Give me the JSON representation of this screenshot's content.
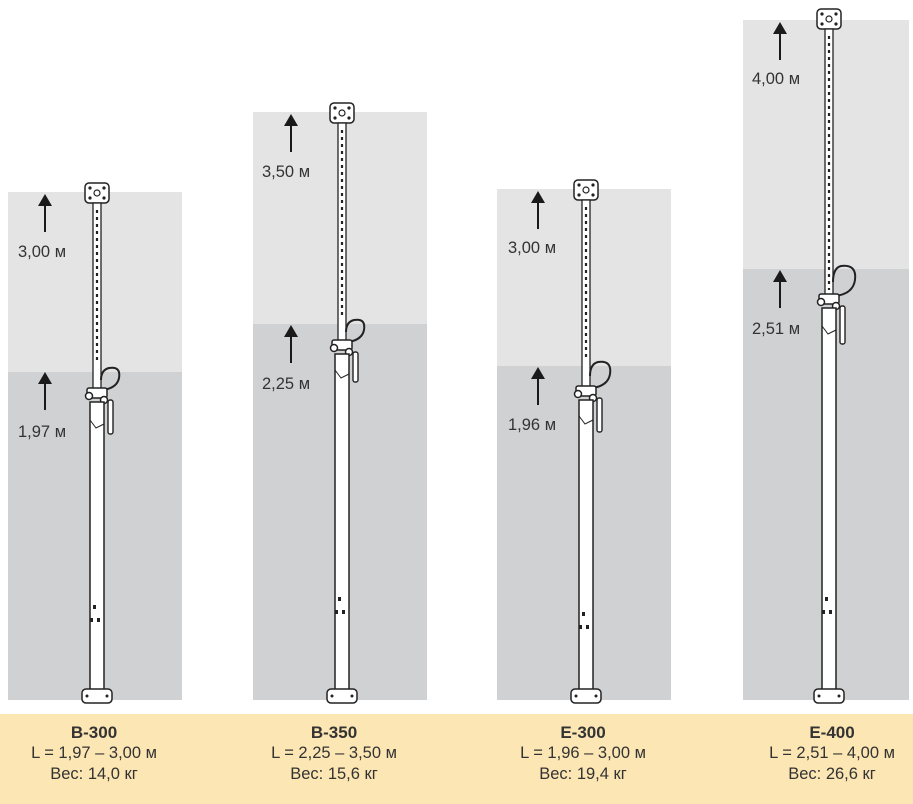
{
  "props": [
    {
      "id": "b-300",
      "model": "B-300",
      "max_length": "3,00 м",
      "min_length": "1,97 м",
      "length_range": "L = 1,97 – 3,00 м",
      "weight": "Вес: 14,0 кг"
    },
    {
      "id": "b-350",
      "model": "B-350",
      "max_length": "3,50 м",
      "min_length": "2,25 м",
      "length_range": "L = 2,25 – 3,50 м",
      "weight": "Вес: 15,6 кг"
    },
    {
      "id": "e-300",
      "model": "E-300",
      "max_length": "3,00 м",
      "min_length": "1,96 м",
      "length_range": "L = 1,96 – 3,00 м",
      "weight": "Вес: 19,4 кг"
    },
    {
      "id": "e-400",
      "model": "E-400",
      "max_length": "4,00 м",
      "min_length": "2,51 м",
      "length_range": "L = 2,51 – 4,00 м",
      "weight": "Вес: 26,6 кг"
    }
  ],
  "colors": {
    "extended_zone": "#e4e4e5",
    "min_zone": "#d0d1d3",
    "spec_band": "#fce6b3",
    "text": "#333333"
  }
}
